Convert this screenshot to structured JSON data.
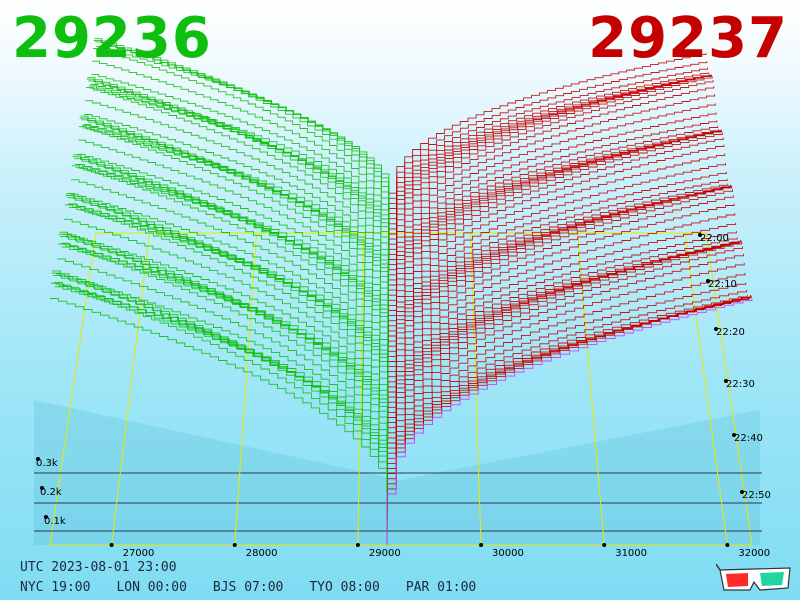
{
  "bid_price": "29236",
  "ask_price": "29237",
  "colors": {
    "bid": "#0fbf0f",
    "ask": "#c40000",
    "grid": "#e8e800",
    "highlight": "#cc33ff"
  },
  "footer": {
    "utc": "UTC 2023-08-01 23:00",
    "zones": [
      {
        "label": "NYC 19:00"
      },
      {
        "label": "LON 00:00"
      },
      {
        "label": "BJS 07:00"
      },
      {
        "label": "TYO 08:00"
      },
      {
        "label": "PAR 01:00"
      }
    ]
  },
  "chart_data": {
    "type": "area",
    "description_kind": "order-book depth surface over time",
    "x": {
      "ticks": [
        "27000",
        "28000",
        "29000",
        "30000",
        "31000",
        "32000"
      ],
      "range": [
        26500,
        32200
      ]
    },
    "depth_axis": {
      "ticks": [
        "0.1k",
        "0.2k",
        "0.3k"
      ]
    },
    "time_axis": {
      "ticks": [
        "22:00",
        "22:10",
        "22:20",
        "22:30",
        "22:40",
        "22:50"
      ]
    },
    "mid_price": 29236.5,
    "series": [
      {
        "side": "bid",
        "price_range": [
          26500,
          29236
        ]
      },
      {
        "side": "ask",
        "price_range": [
          29237,
          32200
        ]
      }
    ],
    "slices": 60
  },
  "icon": "3d-glasses-icon"
}
